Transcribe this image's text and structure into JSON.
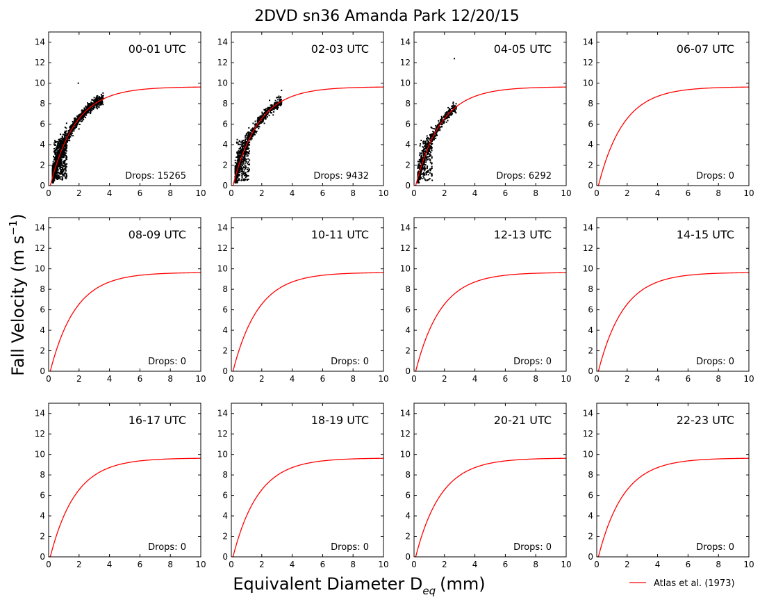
{
  "figure": {
    "title": "2DVD sn36 Amanda Park 12/20/15",
    "xlabel_main": "Equivalent Diameter D",
    "xlabel_sub": "eq",
    "xlabel_unit": "(mm)",
    "ylabel_main": "Fall Velocity (m s",
    "ylabel_sup": "−1",
    "ylabel_end": ")"
  },
  "legend": {
    "label": "Atlas et al. (1973)",
    "color": "#ff0000",
    "placement": "lower-right"
  },
  "chart_data": {
    "type": "scatter",
    "layout": "3x4 small multiples",
    "xlim": [
      0,
      10
    ],
    "ylim": [
      0,
      15
    ],
    "xticks": [
      "0",
      "2",
      "4",
      "6",
      "8",
      "10"
    ],
    "yticks": [
      "0",
      "2",
      "4",
      "6",
      "8",
      "10",
      "12",
      "14"
    ],
    "fit_curve": {
      "name": "Atlas et al. (1973)",
      "color": "#ff0000",
      "formula": "v = 9.65 - 10.3 * exp(-0.6 * D)"
    },
    "scatter_color": "#000000",
    "panels": [
      {
        "title": "00-01 UTC",
        "drops": "Drops: 15265",
        "count": 15265,
        "dmax": 3.6
      },
      {
        "title": "02-03 UTC",
        "drops": "Drops: 9432",
        "count": 9432,
        "dmax": 3.3
      },
      {
        "title": "04-05 UTC",
        "drops": "Drops: 6292",
        "count": 6292,
        "dmax": 2.8
      },
      {
        "title": "06-07 UTC",
        "drops": "Drops: 0",
        "count": 0,
        "dmax": 0
      },
      {
        "title": "08-09 UTC",
        "drops": "Drops: 0",
        "count": 0,
        "dmax": 0
      },
      {
        "title": "10-11 UTC",
        "drops": "Drops: 0",
        "count": 0,
        "dmax": 0
      },
      {
        "title": "12-13 UTC",
        "drops": "Drops: 0",
        "count": 0,
        "dmax": 0
      },
      {
        "title": "14-15 UTC",
        "drops": "Drops: 0",
        "count": 0,
        "dmax": 0
      },
      {
        "title": "16-17 UTC",
        "drops": "Drops: 0",
        "count": 0,
        "dmax": 0
      },
      {
        "title": "18-19 UTC",
        "drops": "Drops: 0",
        "count": 0,
        "dmax": 0
      },
      {
        "title": "20-21 UTC",
        "drops": "Drops: 0",
        "count": 0,
        "dmax": 0
      },
      {
        "title": "22-23 UTC",
        "drops": "Drops: 0",
        "count": 0,
        "dmax": 0
      }
    ]
  }
}
